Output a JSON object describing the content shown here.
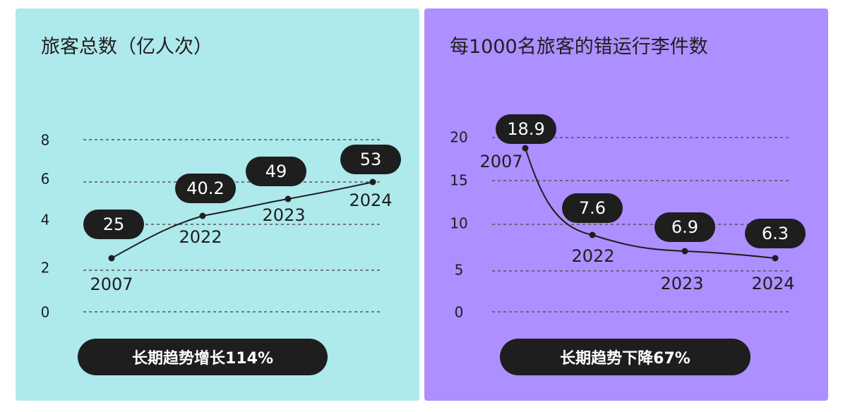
{
  "chart_data": [
    {
      "type": "line",
      "title": "旅客总数（亿人次）",
      "y_ticks": [
        "0",
        "2",
        "4",
        "6",
        "8"
      ],
      "x": [
        "2007",
        "2022",
        "2023",
        "2024"
      ],
      "series": [
        {
          "values": [
            25,
            40.2,
            49,
            53
          ]
        }
      ],
      "value_labels": [
        "25",
        "40.2",
        "49",
        "53"
      ],
      "badge": "长期趋势增长114%",
      "grid": true
    },
    {
      "type": "line",
      "title": "每1000名旅客的错运行李件数",
      "y_ticks": [
        "0",
        "5",
        "10",
        "15",
        "20"
      ],
      "ylim": [
        0,
        20
      ],
      "x": [
        "2007",
        "2022",
        "2023",
        "2024"
      ],
      "series": [
        {
          "values": [
            18.9,
            7.6,
            6.9,
            6.3
          ]
        }
      ],
      "value_labels": [
        "18.9",
        "7.6",
        "6.9",
        "6.3"
      ],
      "badge": "长期趋势下降67%",
      "grid": true
    }
  ],
  "colors": {
    "left_panel": "#aee9ec",
    "right_panel": "#ad8fff",
    "ink": "#1e1e1e",
    "label_text": "#ffffff"
  }
}
